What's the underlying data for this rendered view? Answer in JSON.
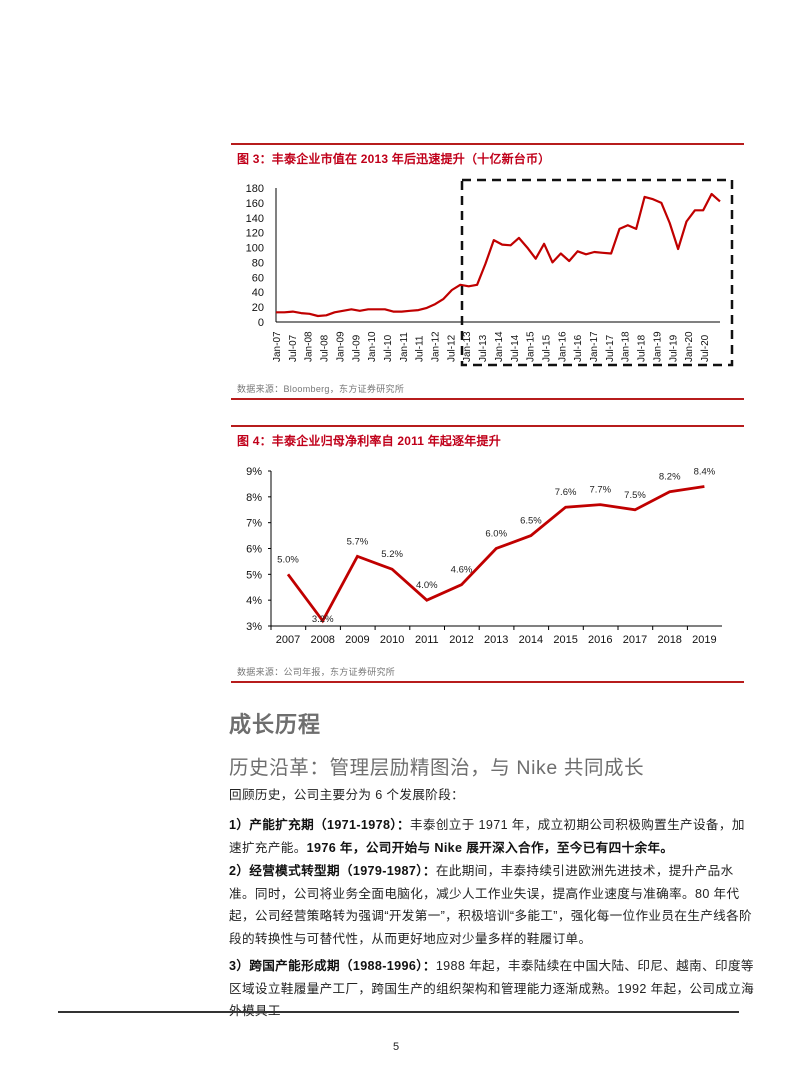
{
  "figure3": {
    "title": "图 3：丰泰企业市值在 2013 年后迅速提升（十亿新台币）",
    "source": "数据来源：Bloomberg，东方证券研究所"
  },
  "figure4": {
    "title": "图 4：丰泰企业归母净利率自 2011 年起逐年提升",
    "source": "数据来源：公司年报，东方证券研究所"
  },
  "section": {
    "heading": "成长历程",
    "subheading": "历史沿革：管理层励精图治，与 Nike 共同成长",
    "intro": "回顾历史，公司主要分为 6 个发展阶段：",
    "stages": [
      {
        "label": "1）产能扩充期（1971-1978）：",
        "text": "丰泰创立于 1971 年，成立初期公司积极购置生产设备，加速扩充产能。",
        "bold_text": "1976 年，公司开始与 Nike 展开深入合作，至今已有四十余年。"
      },
      {
        "label": "2）经营模式转型期（1979-1987）：",
        "text": "在此期间，丰泰持续引进欧洲先进技术，提升产品水准。同时，公司将业务全面电脑化，减少人工作业失误，提高作业速度与准确率。80 年代起，公司经营策略转为强调“开发第一”，积极培训“多能工”，强化每一位作业员在生产线各阶段的转换性与可替代性，从而更好地应对少量多样的鞋履订单。"
      },
      {
        "label": "3）跨国产能形成期（1988-1996）：",
        "text": "1988 年起，丰泰陆续在中国大陆、印尼、越南、印度等区域设立鞋履量产工厂，跨国生产的组织架构和管理能力逐渐成熟。1992 年起，公司成立海外模具工"
      }
    ]
  },
  "footer": {
    "page_number": "5"
  },
  "colors": {
    "accent_red": "#c0001a",
    "line_red": "#c00000",
    "rule_red": "#b71c1c"
  },
  "chart_data": [
    {
      "type": "line",
      "title": "丰泰企业市值在 2013 年后迅速提升（十亿新台币）",
      "xlabel": "",
      "ylabel": "十亿新台币",
      "ylim": [
        0,
        180
      ],
      "yticks": [
        0,
        20,
        40,
        60,
        80,
        100,
        120,
        140,
        160,
        180
      ],
      "categories": [
        "Jan-07",
        "Jul-07",
        "Jan-08",
        "Jul-08",
        "Jan-09",
        "Jul-09",
        "Jan-10",
        "Jul-10",
        "Jan-11",
        "Jul-11",
        "Jan-12",
        "Jul-12",
        "Jan-13",
        "Jul-13",
        "Jan-14",
        "Jul-14",
        "Jan-15",
        "Jul-15",
        "Jan-16",
        "Jul-16",
        "Jan-17",
        "Jul-17",
        "Jan-18",
        "Jul-18",
        "Jan-19",
        "Jul-19",
        "Jan-20",
        "Jul-20"
      ],
      "series": [
        {
          "name": "市值",
          "values": [
            13,
            13,
            14,
            12,
            11,
            8,
            9,
            13,
            15,
            17,
            15,
            17,
            17,
            17,
            14,
            14,
            15,
            16,
            19,
            24,
            31,
            43,
            50,
            48,
            50,
            78,
            110,
            104,
            103,
            113,
            100,
            85,
            105,
            80,
            92,
            82,
            95,
            91,
            94,
            93,
            92,
            125,
            130,
            125,
            168,
            165,
            160,
            133,
            98,
            135,
            150,
            150,
            172,
            162
          ]
        }
      ],
      "highlight_box": {
        "from": "Jan-13",
        "to": "end",
        "style": "dashed"
      },
      "grid": false,
      "legend": null
    },
    {
      "type": "line",
      "title": "丰泰企业归母净利率自 2011 年起逐年提升",
      "xlabel": "",
      "ylabel": "",
      "ylim": [
        3,
        9
      ],
      "yticks": [
        "3%",
        "4%",
        "5%",
        "6%",
        "7%",
        "8%",
        "9%"
      ],
      "categories": [
        "2007",
        "2008",
        "2009",
        "2010",
        "2011",
        "2012",
        "2013",
        "2014",
        "2015",
        "2016",
        "2017",
        "2018",
        "2019"
      ],
      "series": [
        {
          "name": "归母净利率",
          "values": [
            5.0,
            3.2,
            5.7,
            5.2,
            4.0,
            4.6,
            6.0,
            6.5,
            7.6,
            7.7,
            7.5,
            8.2,
            8.4
          ],
          "labels": [
            "5.0%",
            "3.2%",
            "5.7%",
            "5.2%",
            "4.0%",
            "4.6%",
            "6.0%",
            "6.5%",
            "7.6%",
            "7.7%",
            "7.5%",
            "8.2%",
            "8.4%"
          ]
        }
      ],
      "grid": false,
      "legend": null
    }
  ]
}
